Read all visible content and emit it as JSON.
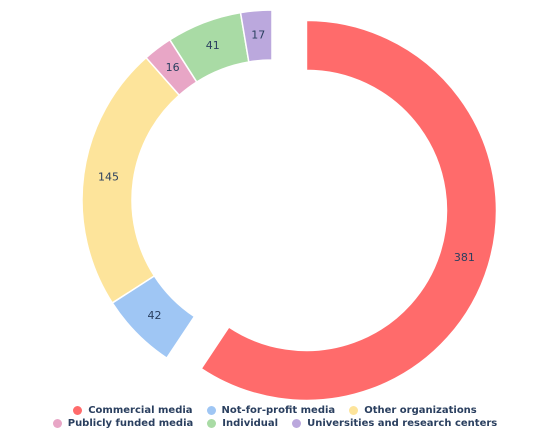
{
  "chart_data": {
    "type": "donut",
    "categories": [
      "Commercial media",
      "Not-for-profit media",
      "Other organizations",
      "Publicly funded media",
      "Individual",
      "Universities and research centers"
    ],
    "values": [
      381,
      42,
      145,
      16,
      41,
      17
    ],
    "colors": [
      "#ff6b6b",
      "#9fc6f4",
      "#fde49b",
      "#e8a6c6",
      "#a9dba5",
      "#bba8dd"
    ],
    "pulled": [
      true,
      false,
      false,
      false,
      false,
      false
    ]
  }
}
